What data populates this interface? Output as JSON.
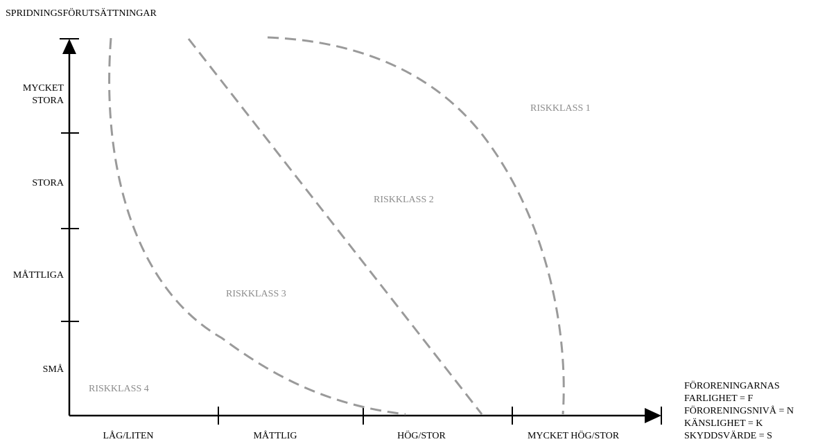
{
  "y_axis": {
    "title": "SPRIDNINGSFÖRUTSÄTTNINGAR",
    "labels": [
      {
        "lines": [
          "MYCKET",
          "STORA"
        ]
      },
      {
        "lines": [
          "STORA"
        ]
      },
      {
        "lines": [
          "MÅTTLIGA"
        ]
      },
      {
        "lines": [
          "SMÅ"
        ]
      }
    ]
  },
  "x_axis": {
    "labels": [
      "LÅG/LITEN",
      "MÅTTLIG",
      "HÖG/STOR",
      "MYCKET HÖG/STOR"
    ],
    "title_lines": [
      "FÖRORENINGARNAS",
      "FARLIGHET = F",
      "FÖRORENINGSNIVÅ = N",
      "KÄNSLIGHET = K",
      "SKYDDSVÄRDE = S"
    ]
  },
  "regions": {
    "riskklass_1": "RISKKLASS 1",
    "riskklass_2": "RISKKLASS 2",
    "riskklass_3": "RISKKLASS 3",
    "riskklass_4": "RISKKLASS 4"
  },
  "colors": {
    "axis": "#000000",
    "boundary": "#9a9a9a",
    "region_text": "#8c8c8c"
  }
}
